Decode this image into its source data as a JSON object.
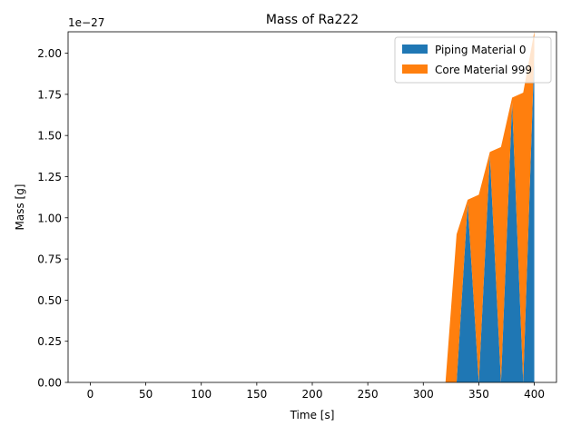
{
  "chart_data": {
    "type": "area",
    "stacked": true,
    "title": "Mass of Ra222",
    "xlabel": "Time [s]",
    "ylabel": "Mass [g]",
    "y_offset_text": "1e−27",
    "y_scale": 1e-27,
    "xlim": [
      -20,
      420
    ],
    "ylim": [
      0,
      2.13
    ],
    "x_ticks": [
      0,
      50,
      100,
      150,
      200,
      250,
      300,
      350,
      400
    ],
    "y_ticks": [
      0.0,
      0.25,
      0.5,
      0.75,
      1.0,
      1.25,
      1.5,
      1.75,
      2.0
    ],
    "y_tick_labels": [
      "0.00",
      "0.25",
      "0.50",
      "0.75",
      "1.00",
      "1.25",
      "1.50",
      "1.75",
      "2.00"
    ],
    "legend_position": "upper right",
    "x": [
      0,
      10,
      20,
      30,
      40,
      50,
      60,
      70,
      80,
      90,
      100,
      110,
      120,
      130,
      140,
      150,
      160,
      170,
      180,
      190,
      200,
      210,
      220,
      230,
      240,
      250,
      260,
      270,
      280,
      290,
      300,
      310,
      320,
      330,
      340,
      350,
      360,
      370,
      380,
      390,
      400
    ],
    "series": [
      {
        "name": "Piping Material 0",
        "color": "#1f77b4",
        "values": [
          0,
          0,
          0,
          0,
          0,
          0,
          0,
          0,
          0,
          0,
          0,
          0,
          0,
          0,
          0,
          0,
          0,
          0,
          0,
          0,
          0,
          0,
          0,
          0,
          0,
          0,
          0,
          0,
          0,
          0,
          0,
          0,
          0,
          0,
          1.09,
          0,
          1.38,
          0,
          1.7,
          0,
          2.0
        ]
      },
      {
        "name": "Core Material 999",
        "color": "#ff7f0e",
        "values": [
          0,
          0,
          0,
          0,
          0,
          0,
          0,
          0,
          0,
          0,
          0,
          0,
          0,
          0,
          0,
          0,
          0,
          0,
          0,
          0,
          0,
          0,
          0,
          0,
          0,
          0,
          0,
          0,
          0,
          0,
          0,
          0,
          0,
          0.9,
          0.02,
          1.14,
          0.02,
          1.43,
          0.03,
          1.76,
          0.13
        ]
      }
    ]
  }
}
